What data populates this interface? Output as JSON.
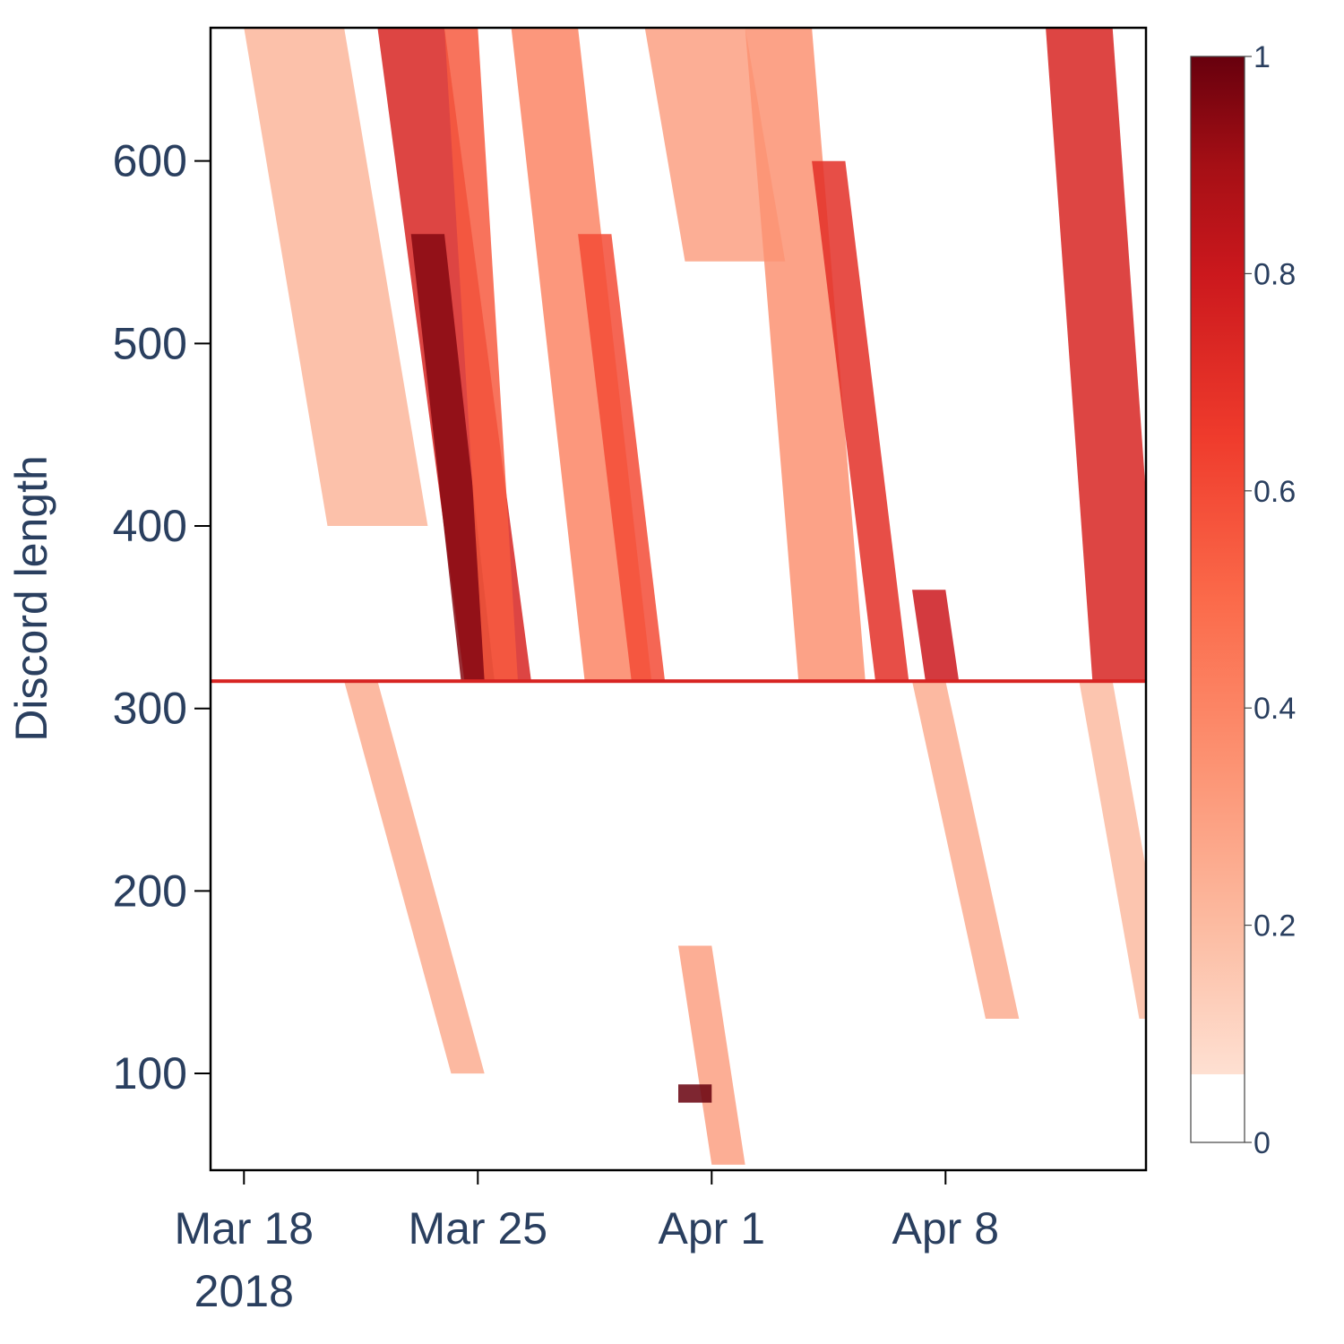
{
  "chart_data": {
    "type": "heatmap",
    "title": "",
    "xlabel": "",
    "ylabel": "Discord length",
    "x_axis": {
      "range": [
        "2018-03-17",
        "2018-04-14"
      ],
      "ticks": [
        {
          "value": "2018-03-18",
          "label": "Mar 18",
          "sublabel": "2018"
        },
        {
          "value": "2018-03-25",
          "label": "Mar 25",
          "sublabel": ""
        },
        {
          "value": "2018-04-01",
          "label": "Apr 1",
          "sublabel": ""
        },
        {
          "value": "2018-04-08",
          "label": "Apr 8",
          "sublabel": ""
        }
      ]
    },
    "y_axis": {
      "range": [
        47,
        673
      ],
      "ticks": [
        {
          "value": 100,
          "label": "100"
        },
        {
          "value": 200,
          "label": "200"
        },
        {
          "value": 300,
          "label": "300"
        },
        {
          "value": 400,
          "label": "400"
        },
        {
          "value": 500,
          "label": "500"
        },
        {
          "value": 600,
          "label": "600"
        }
      ]
    },
    "colorbar": {
      "range": [
        0,
        1
      ],
      "ticks": [
        {
          "value": 0,
          "label": "0"
        },
        {
          "value": 0.2,
          "label": "0.2"
        },
        {
          "value": 0.4,
          "label": "0.4"
        },
        {
          "value": 0.6,
          "label": "0.6"
        },
        {
          "value": 0.8,
          "label": "0.8"
        },
        {
          "value": 1,
          "label": "1"
        }
      ],
      "colorscale": [
        [
          0,
          "#ffffff"
        ],
        [
          0.0625,
          "#ffffff"
        ],
        [
          0.0626,
          "#fee0d2"
        ],
        [
          0.2,
          "#fcbba1"
        ],
        [
          0.35,
          "#fc9272"
        ],
        [
          0.5,
          "#fb6a4a"
        ],
        [
          0.65,
          "#ef3b2c"
        ],
        [
          0.8,
          "#cb181d"
        ],
        [
          0.9,
          "#a50f15"
        ],
        [
          1,
          "#67000d"
        ]
      ]
    },
    "grid": false,
    "highlight_row": {
      "y": 315,
      "value": 0.75
    },
    "features": [
      {
        "x0": "2018-03-22",
        "x1": "2018-03-24",
        "y0": 315,
        "y1": 673,
        "drift_days": 2.6,
        "value": 0.75
      },
      {
        "x0": "2018-03-23",
        "x1": "2018-03-24",
        "y0": 315,
        "y1": 560,
        "drift_days": 1.5,
        "value": 0.95
      },
      {
        "x0": "2018-03-24",
        "x1": "2018-03-25",
        "y0": 315,
        "y1": 673,
        "drift_days": 1.2,
        "value": 0.55
      },
      {
        "x0": "2018-03-21",
        "x1": "2018-03-22",
        "y0": 100,
        "y1": 315,
        "drift_days": 3.2,
        "value": 0.25
      },
      {
        "x0": "2018-03-18",
        "x1": "2018-03-21",
        "y0": 400,
        "y1": 673,
        "drift_days": 2.5,
        "value": 0.22
      },
      {
        "x0": "2018-03-26",
        "x1": "2018-03-28",
        "y0": 315,
        "y1": 673,
        "drift_days": 2.2,
        "value": 0.4
      },
      {
        "x0": "2018-03-28",
        "x1": "2018-03-29",
        "y0": 315,
        "y1": 560,
        "drift_days": 1.6,
        "value": 0.6
      },
      {
        "x0": "2018-03-30",
        "x1": "2018-04-02",
        "y0": 545,
        "y1": 673,
        "drift_days": 1.2,
        "value": 0.3
      },
      {
        "x0": "2018-04-02",
        "x1": "2018-04-04",
        "y0": 315,
        "y1": 673,
        "drift_days": 1.6,
        "value": 0.35
      },
      {
        "x0": "2018-04-04",
        "x1": "2018-04-05",
        "y0": 315,
        "y1": 600,
        "drift_days": 1.9,
        "value": 0.7
      },
      {
        "x0": "2018-04-07",
        "x1": "2018-04-08",
        "y0": 315,
        "y1": 365,
        "drift_days": 0.4,
        "value": 0.8
      },
      {
        "x0": "2018-04-07",
        "x1": "2018-04-08",
        "y0": 130,
        "y1": 315,
        "drift_days": 2.2,
        "value": 0.25
      },
      {
        "x0": "2018-04-11",
        "x1": "2018-04-13",
        "y0": 315,
        "y1": 673,
        "drift_days": 1.4,
        "value": 0.75
      },
      {
        "x0": "2018-04-12",
        "x1": "2018-04-13",
        "y0": 130,
        "y1": 315,
        "drift_days": 1.8,
        "value": 0.2
      },
      {
        "x0": "2018-03-31",
        "x1": "2018-04-01",
        "y0": 50,
        "y1": 170,
        "drift_days": 1.0,
        "value": 0.3
      },
      {
        "x0": "2018-03-31",
        "x1": "2018-04-01",
        "y0": 84,
        "y1": 94,
        "drift_days": 0.0,
        "value": 1.0
      }
    ]
  }
}
